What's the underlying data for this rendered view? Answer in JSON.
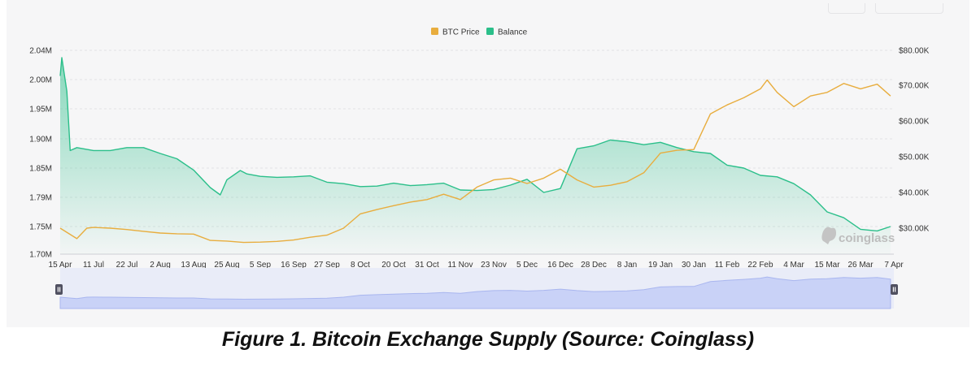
{
  "caption": "Figure 1. Bitcoin Exchange Supply (Source: Coinglass)",
  "watermark": "coinglass",
  "colors": {
    "btc_price": "#e8ad3e",
    "balance": "#2bbf8a",
    "balance_fill": "#2bbf8a",
    "navigator_fill": "#c9d2f7",
    "navigator_line": "#a9b6ef"
  },
  "chart_data": {
    "type": "line",
    "title": "",
    "legend_position": "top-center",
    "grid": true,
    "x_ticks": [
      "15 Apr",
      "11 Jul",
      "22 Jul",
      "2 Aug",
      "13 Aug",
      "25 Aug",
      "5 Sep",
      "16 Sep",
      "27 Sep",
      "8 Oct",
      "20 Oct",
      "31 Oct",
      "11 Nov",
      "23 Nov",
      "5 Dec",
      "16 Dec",
      "28 Dec",
      "8 Jan",
      "19 Jan",
      "30 Jan",
      "11 Feb",
      "22 Feb",
      "4 Mar",
      "15 Mar",
      "26 Mar",
      "7 Apr"
    ],
    "y_left": {
      "label": "",
      "ticks": [
        "2.04M",
        "2.00M",
        "1.95M",
        "1.90M",
        "1.85M",
        "1.79M",
        "1.75M",
        "1.70M"
      ],
      "range": [
        1.7,
        2.04
      ]
    },
    "y_right": {
      "label": "",
      "ticks": [
        "$80.00K",
        "$70.00K",
        "$60.00K",
        "$50.00K",
        "$40.00K",
        "$30.00K"
      ],
      "range": [
        20000,
        80000
      ]
    },
    "series": [
      {
        "name": "BTC Price",
        "axis": "right",
        "x": [
          0,
          0.5,
          0.8,
          1,
          1.5,
          2,
          2.5,
          3,
          3.5,
          4,
          4.5,
          5,
          5.5,
          6,
          6.5,
          7,
          7.5,
          8,
          8.5,
          9,
          9.5,
          10,
          10.5,
          11,
          11.5,
          12,
          12.5,
          13,
          13.5,
          14,
          14.5,
          15,
          15.5,
          16,
          16.5,
          17,
          17.5,
          18,
          18.5,
          19,
          19.5,
          20,
          20.5,
          21,
          21.2,
          21.5,
          22,
          22.5,
          23,
          23.5,
          24,
          24.5,
          24.9
        ],
        "values": [
          30000,
          27000,
          30000,
          30200,
          30000,
          29600,
          29100,
          28600,
          28400,
          28300,
          26500,
          26300,
          25900,
          26000,
          26200,
          26600,
          27400,
          28000,
          30000,
          34000,
          35200,
          36300,
          37300,
          38000,
          39500,
          38000,
          41500,
          43500,
          44000,
          42500,
          44000,
          46500,
          43500,
          41500,
          42000,
          43000,
          45500,
          51000,
          51800,
          52000,
          62000,
          64500,
          66500,
          69000,
          71500,
          68000,
          64000,
          67000,
          68000,
          70500,
          69000,
          70300,
          67000
        ]
      },
      {
        "name": "Balance",
        "axis": "left",
        "x": [
          0,
          0.05,
          0.2,
          0.3,
          0.5,
          1,
          1.5,
          2,
          2.5,
          3,
          3.5,
          4,
          4.5,
          4.8,
          5,
          5.4,
          5.6,
          6,
          6.5,
          7,
          7.5,
          8,
          8.5,
          9,
          9.5,
          10,
          10.5,
          11,
          11.5,
          12,
          12.5,
          13,
          13.5,
          14,
          14.5,
          15,
          15.5,
          16,
          16.5,
          17,
          17.5,
          18,
          18.5,
          19,
          19.5,
          20,
          20.5,
          21,
          21.5,
          22,
          22.5,
          23,
          23.5,
          24,
          24.5,
          24.9
        ],
        "values": [
          2.005,
          2.03,
          1.98,
          1.88,
          1.885,
          1.88,
          1.88,
          1.885,
          1.885,
          1.875,
          1.866,
          1.846,
          1.81,
          1.795,
          1.826,
          1.845,
          1.838,
          1.833,
          1.831,
          1.832,
          1.834,
          1.821,
          1.818,
          1.812,
          1.813,
          1.819,
          1.814,
          1.816,
          1.819,
          1.805,
          1.804,
          1.806,
          1.815,
          1.827,
          1.8,
          1.808,
          1.883,
          1.888,
          1.898,
          1.895,
          1.89,
          1.894,
          1.885,
          1.878,
          1.875,
          1.855,
          1.85,
          1.835,
          1.832,
          1.818,
          1.795,
          1.77,
          1.762,
          1.745,
          1.742,
          1.75
        ]
      }
    ]
  }
}
